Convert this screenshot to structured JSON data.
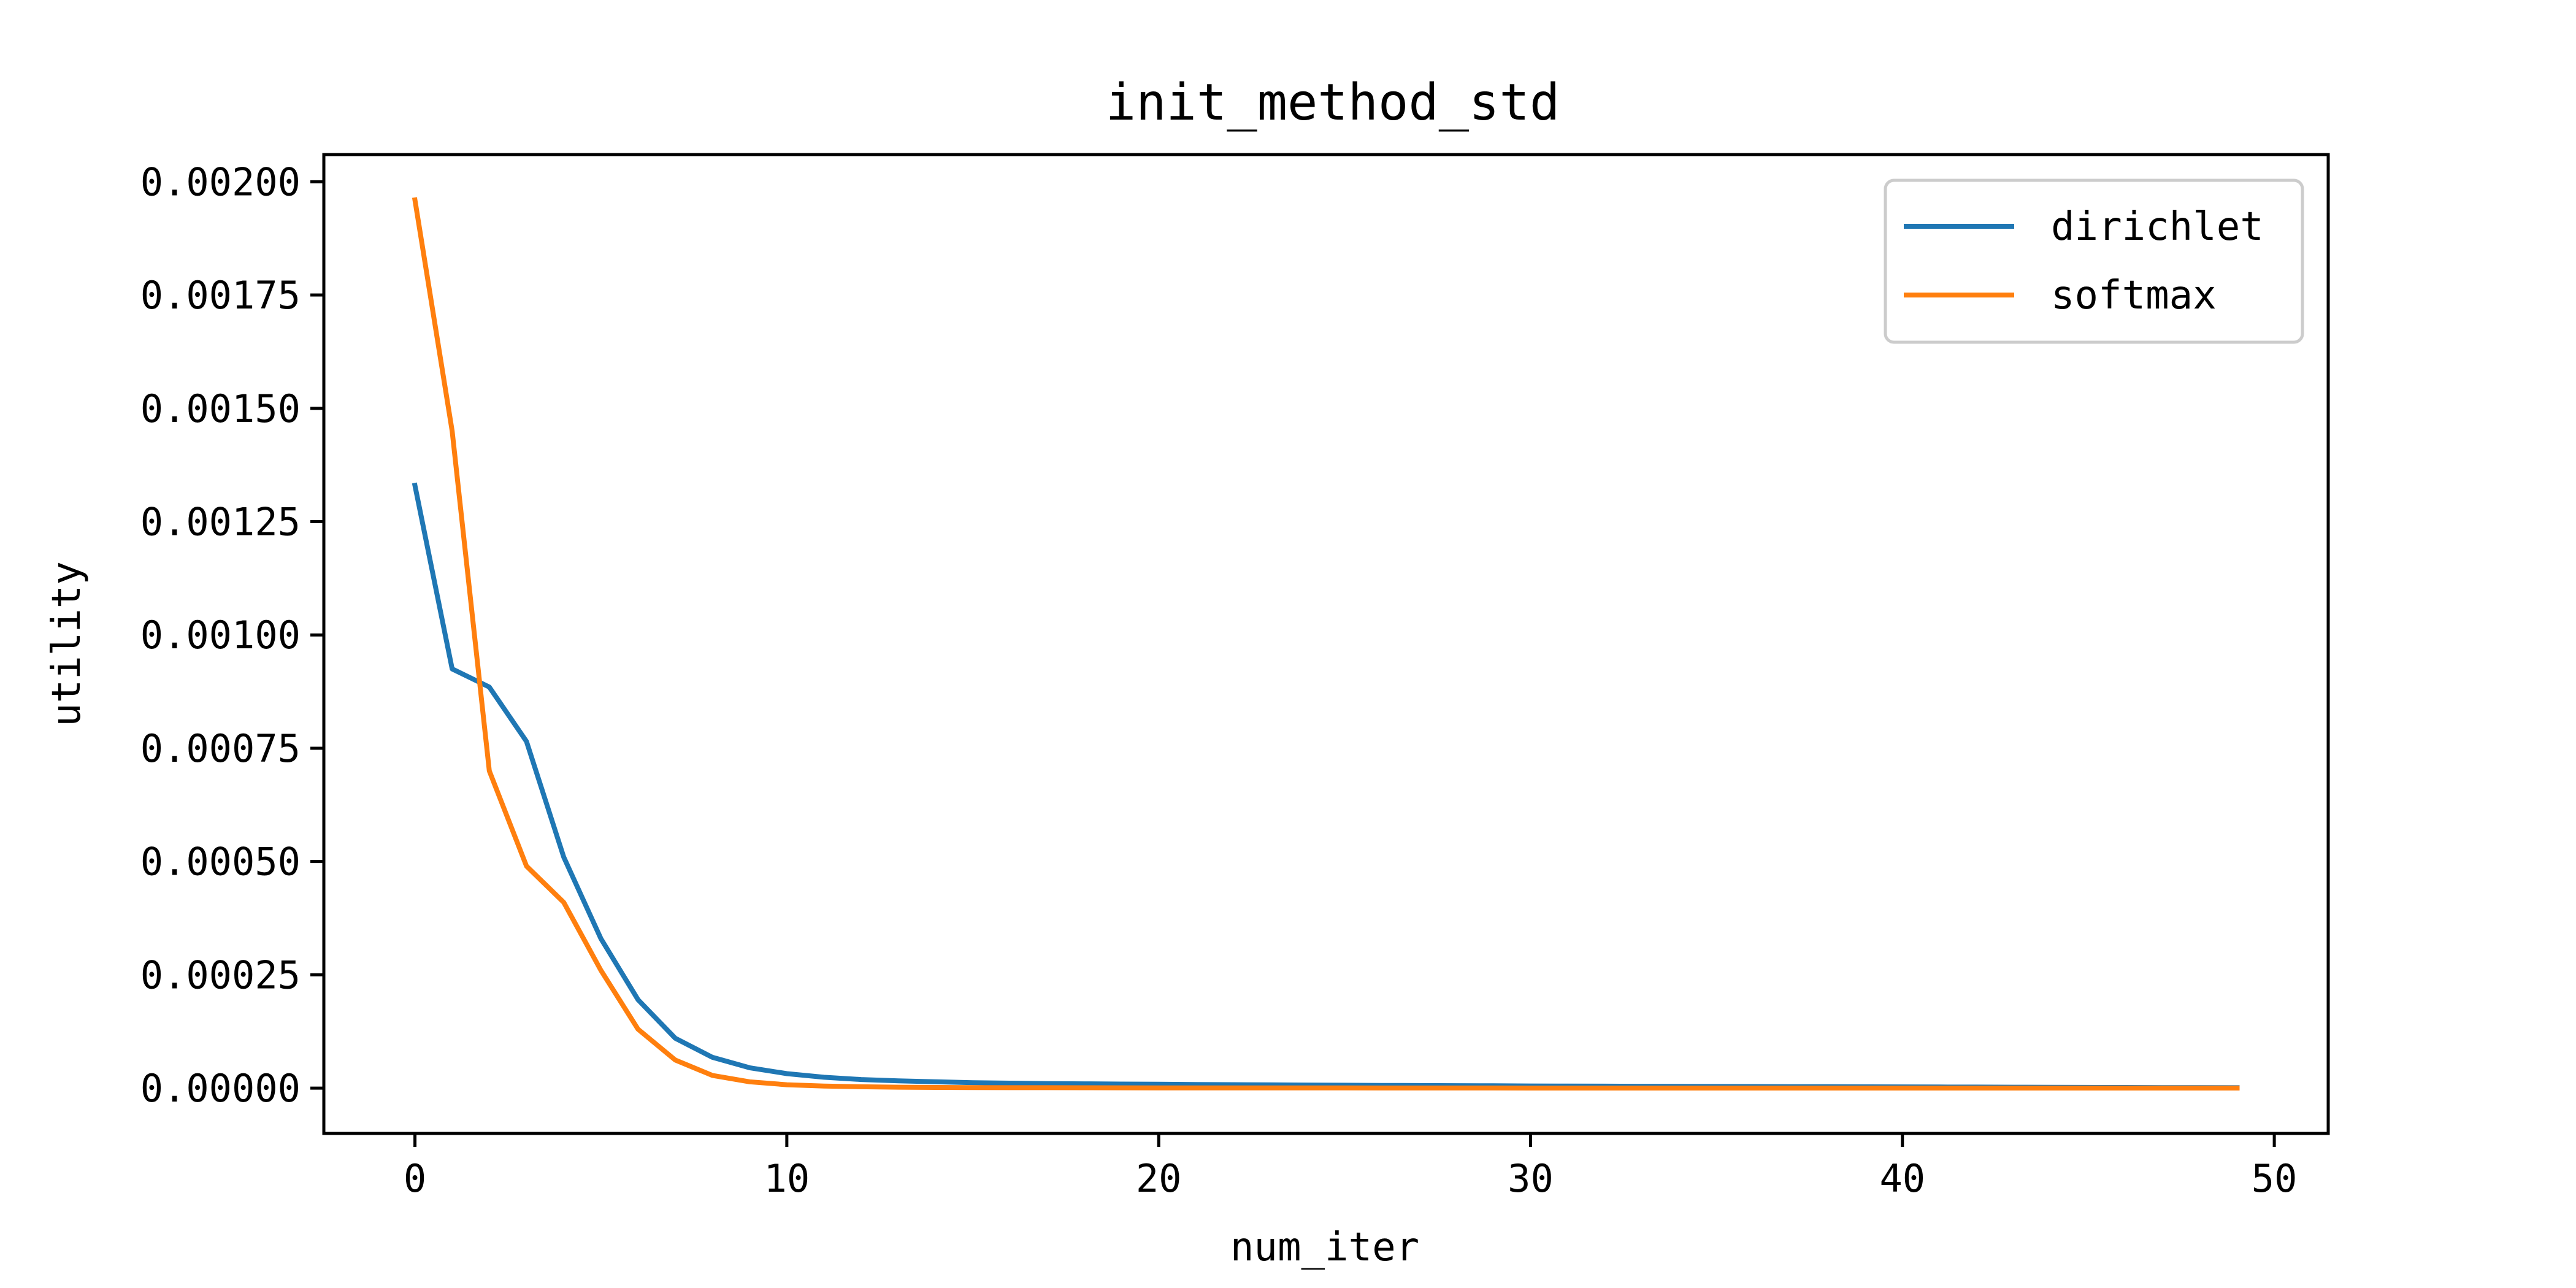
{
  "chart_data": {
    "type": "line",
    "title": "init_method_std",
    "xlabel": "num_iter",
    "ylabel": "utility",
    "xlim": [
      -2.45,
      51.45
    ],
    "ylim": [
      -0.0001,
      0.00206
    ],
    "xticks": [
      0,
      10,
      20,
      30,
      40,
      50
    ],
    "xtick_labels": [
      "0",
      "10",
      "20",
      "30",
      "40",
      "50"
    ],
    "yticks": [
      0,
      0.00025,
      0.0005,
      0.00075,
      0.001,
      0.00125,
      0.0015,
      0.00175,
      0.002
    ],
    "ytick_labels": [
      "0.00000",
      "0.00025",
      "0.00050",
      "0.00075",
      "0.00100",
      "0.00125",
      "0.00150",
      "0.00175",
      "0.00200"
    ],
    "grid": false,
    "legend_position": "top-right",
    "x": [
      0,
      1,
      2,
      3,
      4,
      5,
      6,
      7,
      8,
      9,
      10,
      11,
      12,
      13,
      14,
      15,
      16,
      17,
      18,
      19,
      20,
      21,
      22,
      23,
      24,
      25,
      26,
      27,
      28,
      29,
      30,
      31,
      32,
      33,
      34,
      35,
      36,
      37,
      38,
      39,
      40,
      41,
      42,
      43,
      44,
      45,
      46,
      47,
      48,
      49
    ],
    "series": [
      {
        "name": "dirichlet",
        "color": "#1f77b4",
        "values": [
          0.00133,
          0.000925,
          0.000885,
          0.000765,
          0.00051,
          0.00033,
          0.000195,
          0.00011,
          6.8e-05,
          4.5e-05,
          3.2e-05,
          2.4e-05,
          1.9e-05,
          1.6e-05,
          1.4e-05,
          1.2e-05,
          1.1e-05,
          1e-05,
          9.5e-06,
          9e-06,
          8.5e-06,
          8e-06,
          7.6e-06,
          7.2e-06,
          6.8e-06,
          6.4e-06,
          6e-06,
          5.7e-06,
          5.4e-06,
          5.1e-06,
          4.8e-06,
          4.5e-06,
          4.3e-06,
          4.1e-06,
          3.9e-06,
          3.7e-06,
          3.5e-06,
          3.3e-06,
          3.1e-06,
          2.9e-06,
          2.7e-06,
          2.5e-06,
          2.3e-06,
          2.1e-06,
          1.9e-06,
          1.7e-06,
          1.5e-06,
          1.3e-06,
          1.1e-06,
          1e-06
        ]
      },
      {
        "name": "softmax",
        "color": "#ff7f0e",
        "values": [
          0.00196,
          0.00145,
          0.0007,
          0.00049,
          0.00041,
          0.00026,
          0.00013,
          6.2e-05,
          2.8e-05,
          1.4e-05,
          7.5e-06,
          4.5e-06,
          3e-06,
          2e-06,
          1.5e-06,
          1.2e-06,
          1e-06,
          9e-07,
          8e-07,
          7e-07,
          6e-07,
          5e-07,
          5e-07,
          4e-07,
          4e-07,
          4e-07,
          3e-07,
          3e-07,
          3e-07,
          3e-07,
          2e-07,
          2e-07,
          2e-07,
          2e-07,
          2e-07,
          2e-07,
          1e-07,
          1e-07,
          1e-07,
          1e-07,
          1e-07,
          1e-07,
          1e-07,
          1e-07,
          1e-07,
          1e-07,
          1e-07,
          1e-07,
          1e-07,
          1e-07
        ]
      }
    ]
  }
}
